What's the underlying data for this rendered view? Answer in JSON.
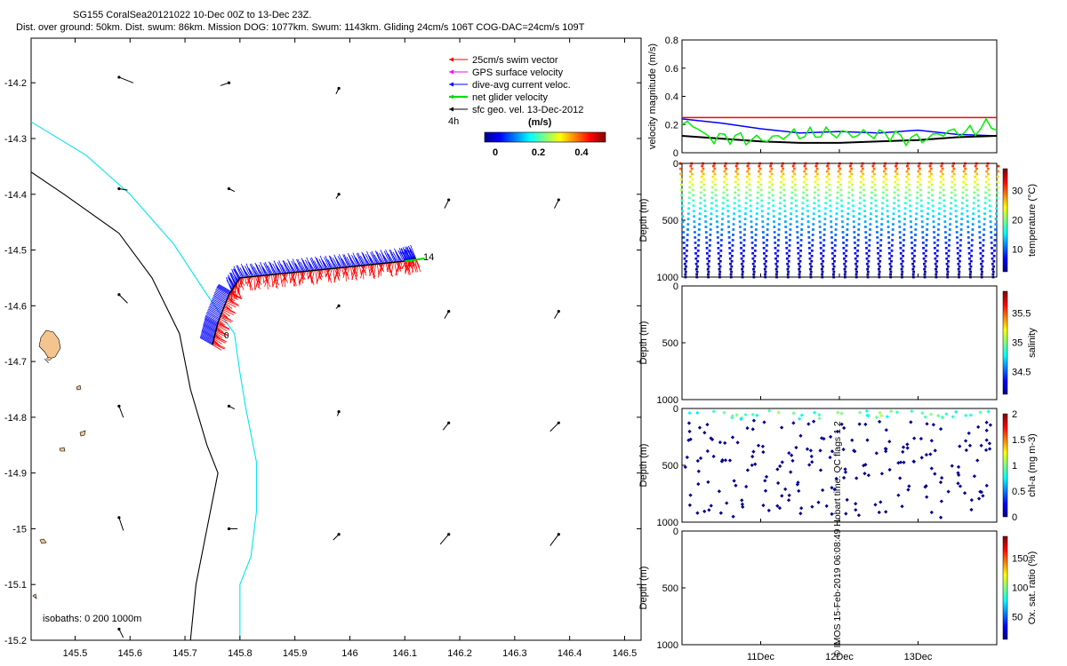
{
  "header": {
    "title_line1": "SG155 CoralSea20121022 10-Dec 00Z to 13-Dec 23Z.",
    "title_line2": "Dist. over ground: 50km. Dist. swum: 86km. Mission DOG: 1077km. Swum: 1143km. Gliding 24cm/s 106T COG-DAC=24cm/s 109T"
  },
  "map": {
    "legend": [
      {
        "label": "25cm/s swim vector",
        "color": "#ff0000"
      },
      {
        "label": "GPS surface velocity",
        "color": "#ff00ff"
      },
      {
        "label": "dive-avg current veloc.",
        "color": "#0000ff"
      },
      {
        "label": "net glider velocity",
        "color": "#00dd00"
      },
      {
        "label": "sfc geo. vel. 13-Dec-2012",
        "color": "#000000"
      }
    ],
    "legend_extra": "4h",
    "colorbar_title": "(m/s)",
    "colorbar_ticks": [
      "0",
      "0.2",
      "0.4"
    ],
    "isobath_label": "isobaths: 0   200  1000m",
    "end_label": "14",
    "start_label": "0",
    "xticks": [
      "145.5",
      "145.6",
      "145.7",
      "145.8",
      "145.9",
      "146",
      "146.1",
      "146.2",
      "146.3",
      "146.4",
      "146.5"
    ],
    "yticks": [
      "-14.2",
      "-14.3",
      "-14.4",
      "-14.5",
      "-14.6",
      "-14.7",
      "-14.8",
      "-14.9",
      "-15",
      "-15.1",
      "-15.2"
    ]
  },
  "panels": {
    "velocity": {
      "ylabel": "velocity magnitude (m/s)",
      "yticks": [
        "0",
        "0.2",
        "0.4",
        "0.6",
        "0.8"
      ]
    },
    "temperature": {
      "ylabel": "Depth (m)",
      "cbar_label": "temperature (°C)",
      "cbar_ticks": [
        "10",
        "20",
        "30"
      ],
      "yticks": [
        "0",
        "500",
        "1000"
      ]
    },
    "salinity": {
      "ylabel": "Depth (m)",
      "cbar_label": "salinity",
      "cbar_ticks": [
        "34.5",
        "35",
        "35.5"
      ],
      "yticks": [
        "0",
        "500",
        "1000"
      ]
    },
    "chla": {
      "ylabel": "Depth (m)",
      "cbar_label": "chl-a (mg m-3)",
      "cbar_ticks": [
        "0",
        "0.5",
        "1",
        "1.5",
        "2"
      ],
      "yticks": [
        "0",
        "500",
        "1000"
      ]
    },
    "oxygen": {
      "ylabel": "Depth (m)",
      "cbar_label": "Ox. sat. ratio (%)",
      "cbar_ticks": [
        "50",
        "100",
        "150"
      ],
      "yticks": [
        "0",
        "500",
        "1000"
      ]
    },
    "xticks": [
      "11Dec",
      "12Dec",
      "13Dec"
    ]
  },
  "watermark": "© IMOS 15-Feb-2019 06:08:49 Hobart time. QC flags 1  2",
  "chart_data": [
    {
      "type": "scatter",
      "title": "SG155 CoralSea20121022 10-Dec 00Z to 13-Dec 23Z.",
      "xlim": [
        145.42,
        146.53
      ],
      "ylim": [
        -15.2,
        -14.12
      ],
      "glider_track": {
        "lon": [
          145.75,
          145.76,
          145.78,
          145.8,
          145.85,
          145.9,
          145.95,
          146.0,
          146.05,
          146.1,
          146.12
        ],
        "lat": [
          -14.67,
          -14.63,
          -14.58,
          -14.55,
          -14.545,
          -14.54,
          -14.535,
          -14.53,
          -14.525,
          -14.52,
          -14.515
        ]
      },
      "isobath_200m": {
        "lon": [
          145.42,
          145.52,
          145.6,
          145.68,
          145.74,
          145.79,
          145.8,
          145.81,
          145.83,
          145.83,
          145.82,
          145.8,
          145.8
        ],
        "lat": [
          -14.27,
          -14.33,
          -14.4,
          -14.49,
          -14.58,
          -14.65,
          -14.72,
          -14.78,
          -14.88,
          -14.97,
          -15.05,
          -15.1,
          -15.2
        ]
      },
      "isobath_1000m": {
        "lon": [
          145.42,
          145.48,
          145.58,
          145.64,
          145.69,
          145.71,
          145.74,
          145.76,
          145.74,
          145.72,
          145.71
        ],
        "lat": [
          -14.36,
          -14.4,
          -14.47,
          -14.55,
          -14.65,
          -14.75,
          -14.85,
          -14.9,
          -15.0,
          -15.1,
          -15.2
        ]
      },
      "geo_velocity_arrows": [
        {
          "lon": 145.58,
          "lat": -14.19,
          "u": 0.1,
          "v": -0.04
        },
        {
          "lon": 145.78,
          "lat": -14.2,
          "u": -0.06,
          "v": -0.02
        },
        {
          "lon": 145.98,
          "lat": -14.21,
          "u": -0.02,
          "v": -0.04
        },
        {
          "lon": 145.58,
          "lat": -14.39,
          "u": 0.06,
          "v": -0.01
        },
        {
          "lon": 145.78,
          "lat": -14.39,
          "u": 0.04,
          "v": -0.02
        },
        {
          "lon": 145.98,
          "lat": -14.4,
          "u": -0.02,
          "v": -0.03
        },
        {
          "lon": 146.18,
          "lat": -14.41,
          "u": -0.03,
          "v": -0.06
        },
        {
          "lon": 146.38,
          "lat": -14.41,
          "u": -0.03,
          "v": -0.06
        },
        {
          "lon": 145.58,
          "lat": -14.58,
          "u": 0.06,
          "v": -0.06
        },
        {
          "lon": 145.98,
          "lat": -14.6,
          "u": -0.02,
          "v": -0.02
        },
        {
          "lon": 146.18,
          "lat": -14.61,
          "u": -0.03,
          "v": -0.05
        },
        {
          "lon": 146.38,
          "lat": -14.61,
          "u": -0.03,
          "v": -0.05
        },
        {
          "lon": 145.58,
          "lat": -14.78,
          "u": 0.03,
          "v": -0.08
        },
        {
          "lon": 145.78,
          "lat": -14.78,
          "u": 0.04,
          "v": -0.02
        },
        {
          "lon": 145.98,
          "lat": -14.79,
          "u": -0.01,
          "v": -0.03
        },
        {
          "lon": 146.18,
          "lat": -14.81,
          "u": -0.04,
          "v": -0.05
        },
        {
          "lon": 146.38,
          "lat": -14.81,
          "u": -0.06,
          "v": -0.06
        },
        {
          "lon": 145.58,
          "lat": -14.98,
          "u": 0.03,
          "v": -0.09
        },
        {
          "lon": 145.78,
          "lat": -15.0,
          "u": 0.06,
          "v": 0.0
        },
        {
          "lon": 145.98,
          "lat": -15.01,
          "u": -0.04,
          "v": -0.04
        },
        {
          "lon": 146.18,
          "lat": -15.01,
          "u": -0.06,
          "v": -0.07
        },
        {
          "lon": 146.38,
          "lat": -15.01,
          "u": -0.06,
          "v": -0.08
        },
        {
          "lon": 145.58,
          "lat": -15.18,
          "u": 0.03,
          "v": -0.06
        }
      ]
    },
    {
      "type": "line",
      "ylabel": "velocity magnitude (m/s)",
      "ylim": [
        0,
        0.8
      ],
      "x_days": [
        0,
        0.5,
        1,
        1.5,
        2,
        2.5,
        3,
        3.5,
        4
      ],
      "series": [
        {
          "name": "25cm/s swim vector",
          "values": [
            0.25,
            0.25,
            0.25,
            0.25,
            0.25,
            0.25,
            0.25,
            0.25,
            0.25
          ]
        },
        {
          "name": "dive-avg current veloc.",
          "values": [
            0.24,
            0.21,
            0.17,
            0.14,
            0.15,
            0.14,
            0.16,
            0.13,
            0.12
          ]
        },
        {
          "name": "sfc geo. vel. 13-Dec-2012",
          "values": [
            0.12,
            0.1,
            0.08,
            0.07,
            0.07,
            0.08,
            0.09,
            0.11,
            0.12
          ]
        },
        {
          "name": "net glider velocity",
          "values": [
            0.2,
            0.12,
            0.1,
            0.12,
            0.13,
            0.14,
            0.11,
            0.14,
            0.18
          ]
        }
      ]
    }
  ]
}
